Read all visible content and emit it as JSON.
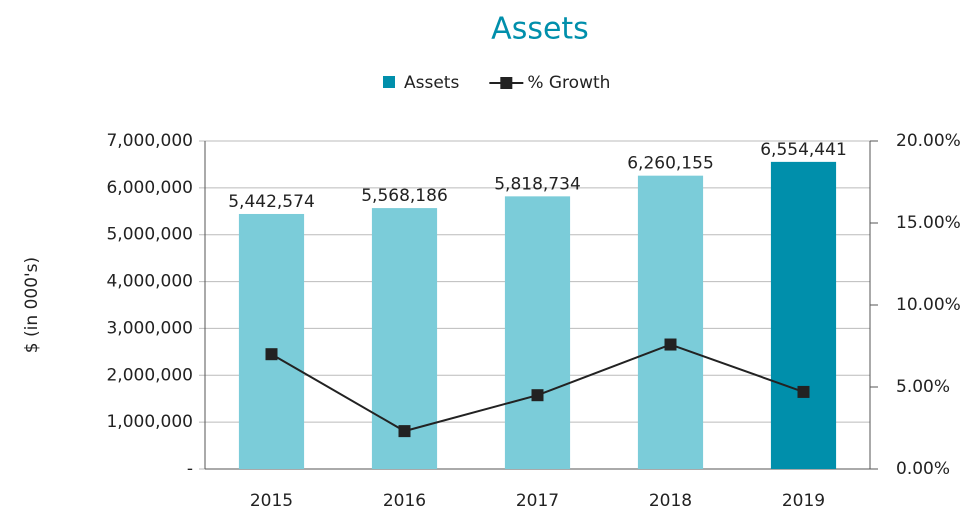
{
  "chart_data": {
    "type": "bar",
    "title": "Assets",
    "categories": [
      "2015",
      "2016",
      "2017",
      "2018",
      "2019"
    ],
    "ylabel": "$ (in 000's)",
    "series": [
      {
        "name": "Assets",
        "type": "bar",
        "color": "#7bccd9",
        "colors": [
          "#7bccd9",
          "#7bccd9",
          "#7bccd9",
          "#7bccd9",
          "#008fab"
        ],
        "values": [
          5442574,
          5568186,
          5818734,
          6260155,
          6554441
        ],
        "value_labels": [
          "5,442,574",
          "5,568,186",
          "5,818,734",
          "6,260,155",
          "6,554,441"
        ]
      },
      {
        "name": "% Growth",
        "type": "line",
        "axis": "y2",
        "color": "#222222",
        "values": [
          7.0,
          2.31,
          4.5,
          7.59,
          4.7
        ]
      }
    ],
    "ylim": [
      0,
      7000000
    ],
    "yticks": [
      {
        "value": 0,
        "label": "-"
      },
      {
        "value": 1000000,
        "label": "1,000,000"
      },
      {
        "value": 2000000,
        "label": "2,000,000"
      },
      {
        "value": 3000000,
        "label": "3,000,000"
      },
      {
        "value": 4000000,
        "label": "4,000,000"
      },
      {
        "value": 5000000,
        "label": "5,000,000"
      },
      {
        "value": 6000000,
        "label": "6,000,000"
      },
      {
        "value": 7000000,
        "label": "7,000,000"
      }
    ],
    "y2lim": [
      0,
      20
    ],
    "y2ticks": [
      {
        "value": 0,
        "label": "0.00%"
      },
      {
        "value": 5,
        "label": "5.00%"
      },
      {
        "value": 10,
        "label": "10.00%"
      },
      {
        "value": 15,
        "label": "15.00%"
      },
      {
        "value": 20,
        "label": "20.00%"
      }
    ],
    "grid": true,
    "legend": "top"
  }
}
